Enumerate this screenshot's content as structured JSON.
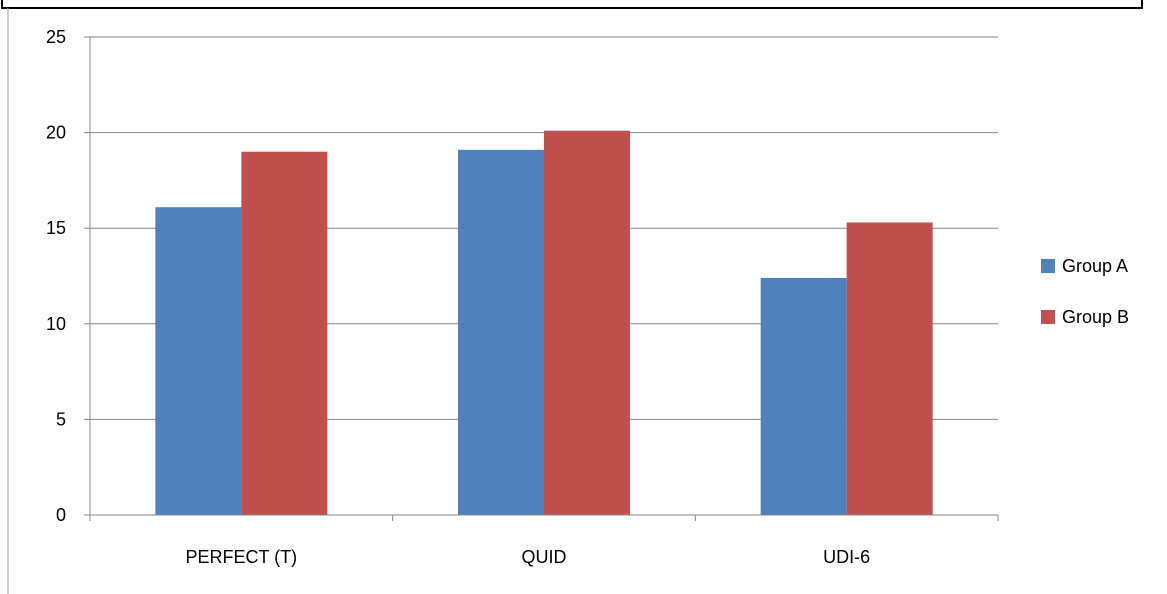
{
  "chart_data": {
    "type": "bar",
    "categories": [
      "PERFECT (T)",
      "QUID",
      "UDI-6"
    ],
    "series": [
      {
        "name": "Group A",
        "color": "#4F81BD",
        "values": [
          16.1,
          19.1,
          12.4
        ]
      },
      {
        "name": "Group B",
        "color": "#C0504D",
        "values": [
          19.0,
          20.1,
          15.3
        ]
      }
    ],
    "ylim": [
      0,
      25
    ],
    "yticks": [
      "0",
      "5",
      "10",
      "15",
      "20",
      "25"
    ],
    "grid": true,
    "legend_position": "right",
    "title": "",
    "xlabel": "",
    "ylabel": ""
  }
}
